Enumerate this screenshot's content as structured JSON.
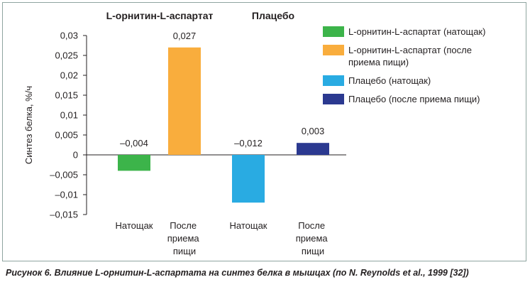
{
  "chart_data": {
    "type": "bar",
    "groups": [
      "L-орнитин-L-аспартат",
      "Плацебо"
    ],
    "categories": [
      "Натощак",
      "После приема пищи",
      "Натощак",
      "После приема пищи"
    ],
    "values": [
      -0.004,
      0.027,
      -0.012,
      0.003
    ],
    "value_labels": [
      "–0,004",
      "0,027",
      "–0,012",
      "0,003"
    ],
    "colors": [
      "#3cb44a",
      "#f9ad3d",
      "#29abe2",
      "#2b3990"
    ],
    "legend": [
      "L-орнитин-L-аспартат (натощак)",
      "L-орнитин-L-аспартат (после приема пищи)",
      "Плацебо (натощак)",
      "Плацебо (после приема пищи)"
    ],
    "ylabel": "Синтез белка, %/ч",
    "ylim": [
      -0.015,
      0.03
    ],
    "yticks": [
      {
        "value": -0.015,
        "label": "–0,015"
      },
      {
        "value": -0.01,
        "label": "–0,01"
      },
      {
        "value": -0.005,
        "label": "–0,005"
      },
      0,
      {
        "value": 0.005,
        "label": "0,005"
      },
      {
        "value": 0.01,
        "label": "0,01"
      },
      {
        "value": 0.015,
        "label": "0,015"
      },
      {
        "value": 0.02,
        "label": "0,02"
      },
      {
        "value": 0.025,
        "label": "0,025"
      },
      {
        "value": 0.03,
        "label": "0,03"
      }
    ],
    "caption": "Рисунок 6. Влияние L-орнитин-L-аспартата на синтез белка в мышцах (по N. Reynolds et al., 1999 [32])"
  }
}
